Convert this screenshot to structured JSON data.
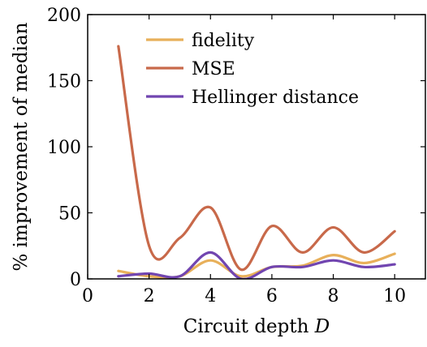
{
  "chart_data": {
    "type": "line",
    "xlabel": "Circuit depth",
    "xlabel_var": "D",
    "ylabel": "% improvement of median",
    "xlim": [
      0,
      11
    ],
    "ylim": [
      0,
      200
    ],
    "xticks": [
      0,
      2,
      4,
      6,
      8,
      10
    ],
    "yticks": [
      0,
      50,
      100,
      150,
      200
    ],
    "grid": false,
    "legend_position": "top-center",
    "smooth": true,
    "x": [
      1,
      2,
      3,
      4,
      5,
      6,
      7,
      8,
      9,
      10
    ],
    "series": [
      {
        "name": "fidelity",
        "color": "#e8b05a",
        "values": [
          6,
          2,
          2,
          14,
          2,
          9,
          10,
          18,
          12,
          19
        ]
      },
      {
        "name": "MSE",
        "color": "#c8694a",
        "values": [
          176,
          25,
          31,
          54,
          7,
          40,
          20,
          39,
          20,
          36
        ]
      },
      {
        "name": "Hellinger distance",
        "color": "#7145b0",
        "values": [
          2,
          4,
          2,
          20,
          0,
          9,
          9,
          14,
          9,
          11
        ]
      }
    ]
  }
}
